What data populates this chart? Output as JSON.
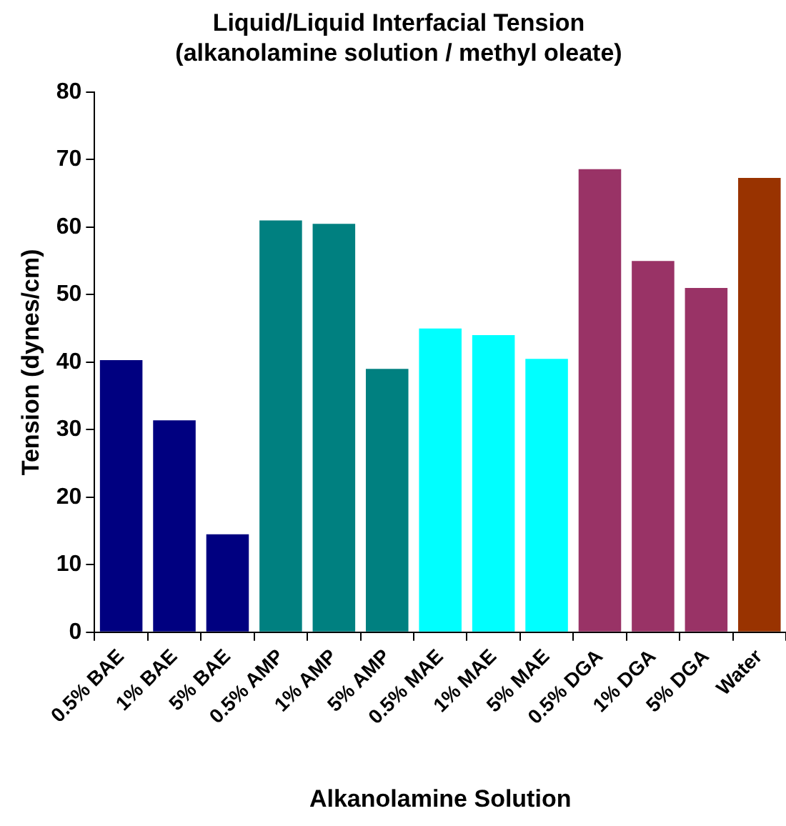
{
  "chart_data": {
    "type": "bar",
    "title": "Liquid/Liquid Interfacial Tension\n(alkanolamine solution / methyl oleate)",
    "xlabel": "Alkanolamine Solution",
    "ylabel": "Tension (dynes/cm)",
    "categories": [
      "0.5% BAE",
      "1% BAE",
      "5% BAE",
      "0.5% AMP",
      "1% AMP",
      "5% AMP",
      "0.5% MAE",
      "1% MAE",
      "5% MAE",
      "0.5% DGA",
      "1% DGA",
      "5% DGA",
      "Water"
    ],
    "values": [
      40.3,
      31.4,
      14.5,
      61,
      60.5,
      39,
      45,
      44,
      40.5,
      68.6,
      55,
      51,
      67.3
    ],
    "colors": [
      "#000080",
      "#000080",
      "#000080",
      "#008080",
      "#008080",
      "#008080",
      "#00ffff",
      "#00ffff",
      "#00ffff",
      "#993366",
      "#993366",
      "#993366",
      "#993300"
    ],
    "ylim": [
      0,
      80
    ],
    "yticks": [
      0,
      10,
      20,
      30,
      40,
      50,
      60,
      70,
      80
    ],
    "grid": false,
    "legend": false
  }
}
